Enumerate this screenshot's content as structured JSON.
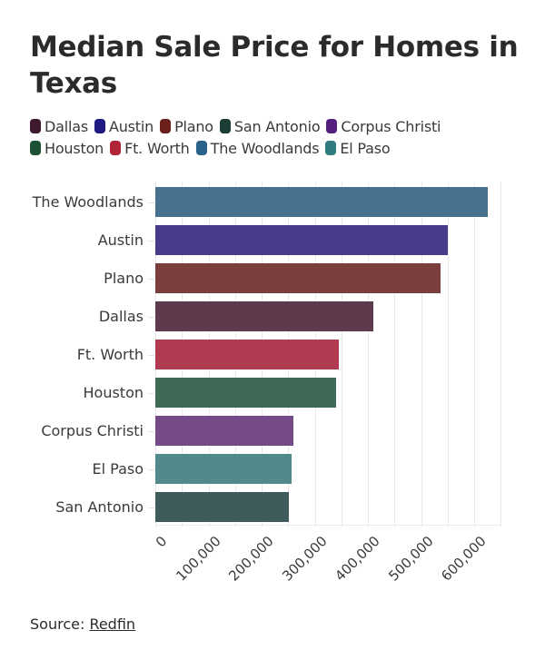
{
  "header": {
    "title": "Median Sale Price for Homes in Texas"
  },
  "legend": {
    "rows": [
      [
        {
          "label": "Dallas",
          "color": "#3f1a2e"
        },
        {
          "label": "Austin",
          "color": "#1e1a82"
        },
        {
          "label": "Plano",
          "color": "#6b1f1b"
        },
        {
          "label": "San Antonio",
          "color": "#1c3c36"
        },
        {
          "label": "Corpus Christi",
          "color": "#55207d"
        }
      ],
      [
        {
          "label": "Houston",
          "color": "#1d5133"
        },
        {
          "label": "Ft. Worth",
          "color": "#b02435"
        },
        {
          "label": "The Woodlands",
          "color": "#2b6289"
        },
        {
          "label": "El Paso",
          "color": "#2f7c7f"
        }
      ]
    ]
  },
  "footer": {
    "source_prefix": "Source: ",
    "source_link": "Redfin"
  },
  "chart_data": {
    "type": "bar",
    "orientation": "horizontal",
    "title": "Median Sale Price for Homes in Texas",
    "xlabel": "",
    "ylabel": "",
    "xlim": [
      0,
      650000
    ],
    "x_ticks": [
      0,
      100000,
      200000,
      300000,
      400000,
      500000,
      600000
    ],
    "x_tick_labels": [
      "0",
      "100,000",
      "200,000",
      "300,000",
      "400,000",
      "500,000",
      "600,000"
    ],
    "grid": true,
    "legend_position": "top",
    "categories": [
      "The Woodlands",
      "Austin",
      "Plano",
      "Dallas",
      "Ft. Worth",
      "Houston",
      "Corpus Christi",
      "El Paso",
      "San Antonio"
    ],
    "values": [
      625000,
      551000,
      537000,
      411000,
      345000,
      340000,
      259000,
      256000,
      252000
    ],
    "colors": [
      "#46718f",
      "#473b8b",
      "#7a3f3d",
      "#5e3a4d",
      "#b03a4f",
      "#3f6b56",
      "#744a89",
      "#528a8b",
      "#405b5b"
    ],
    "source": "Source: Redfin"
  }
}
